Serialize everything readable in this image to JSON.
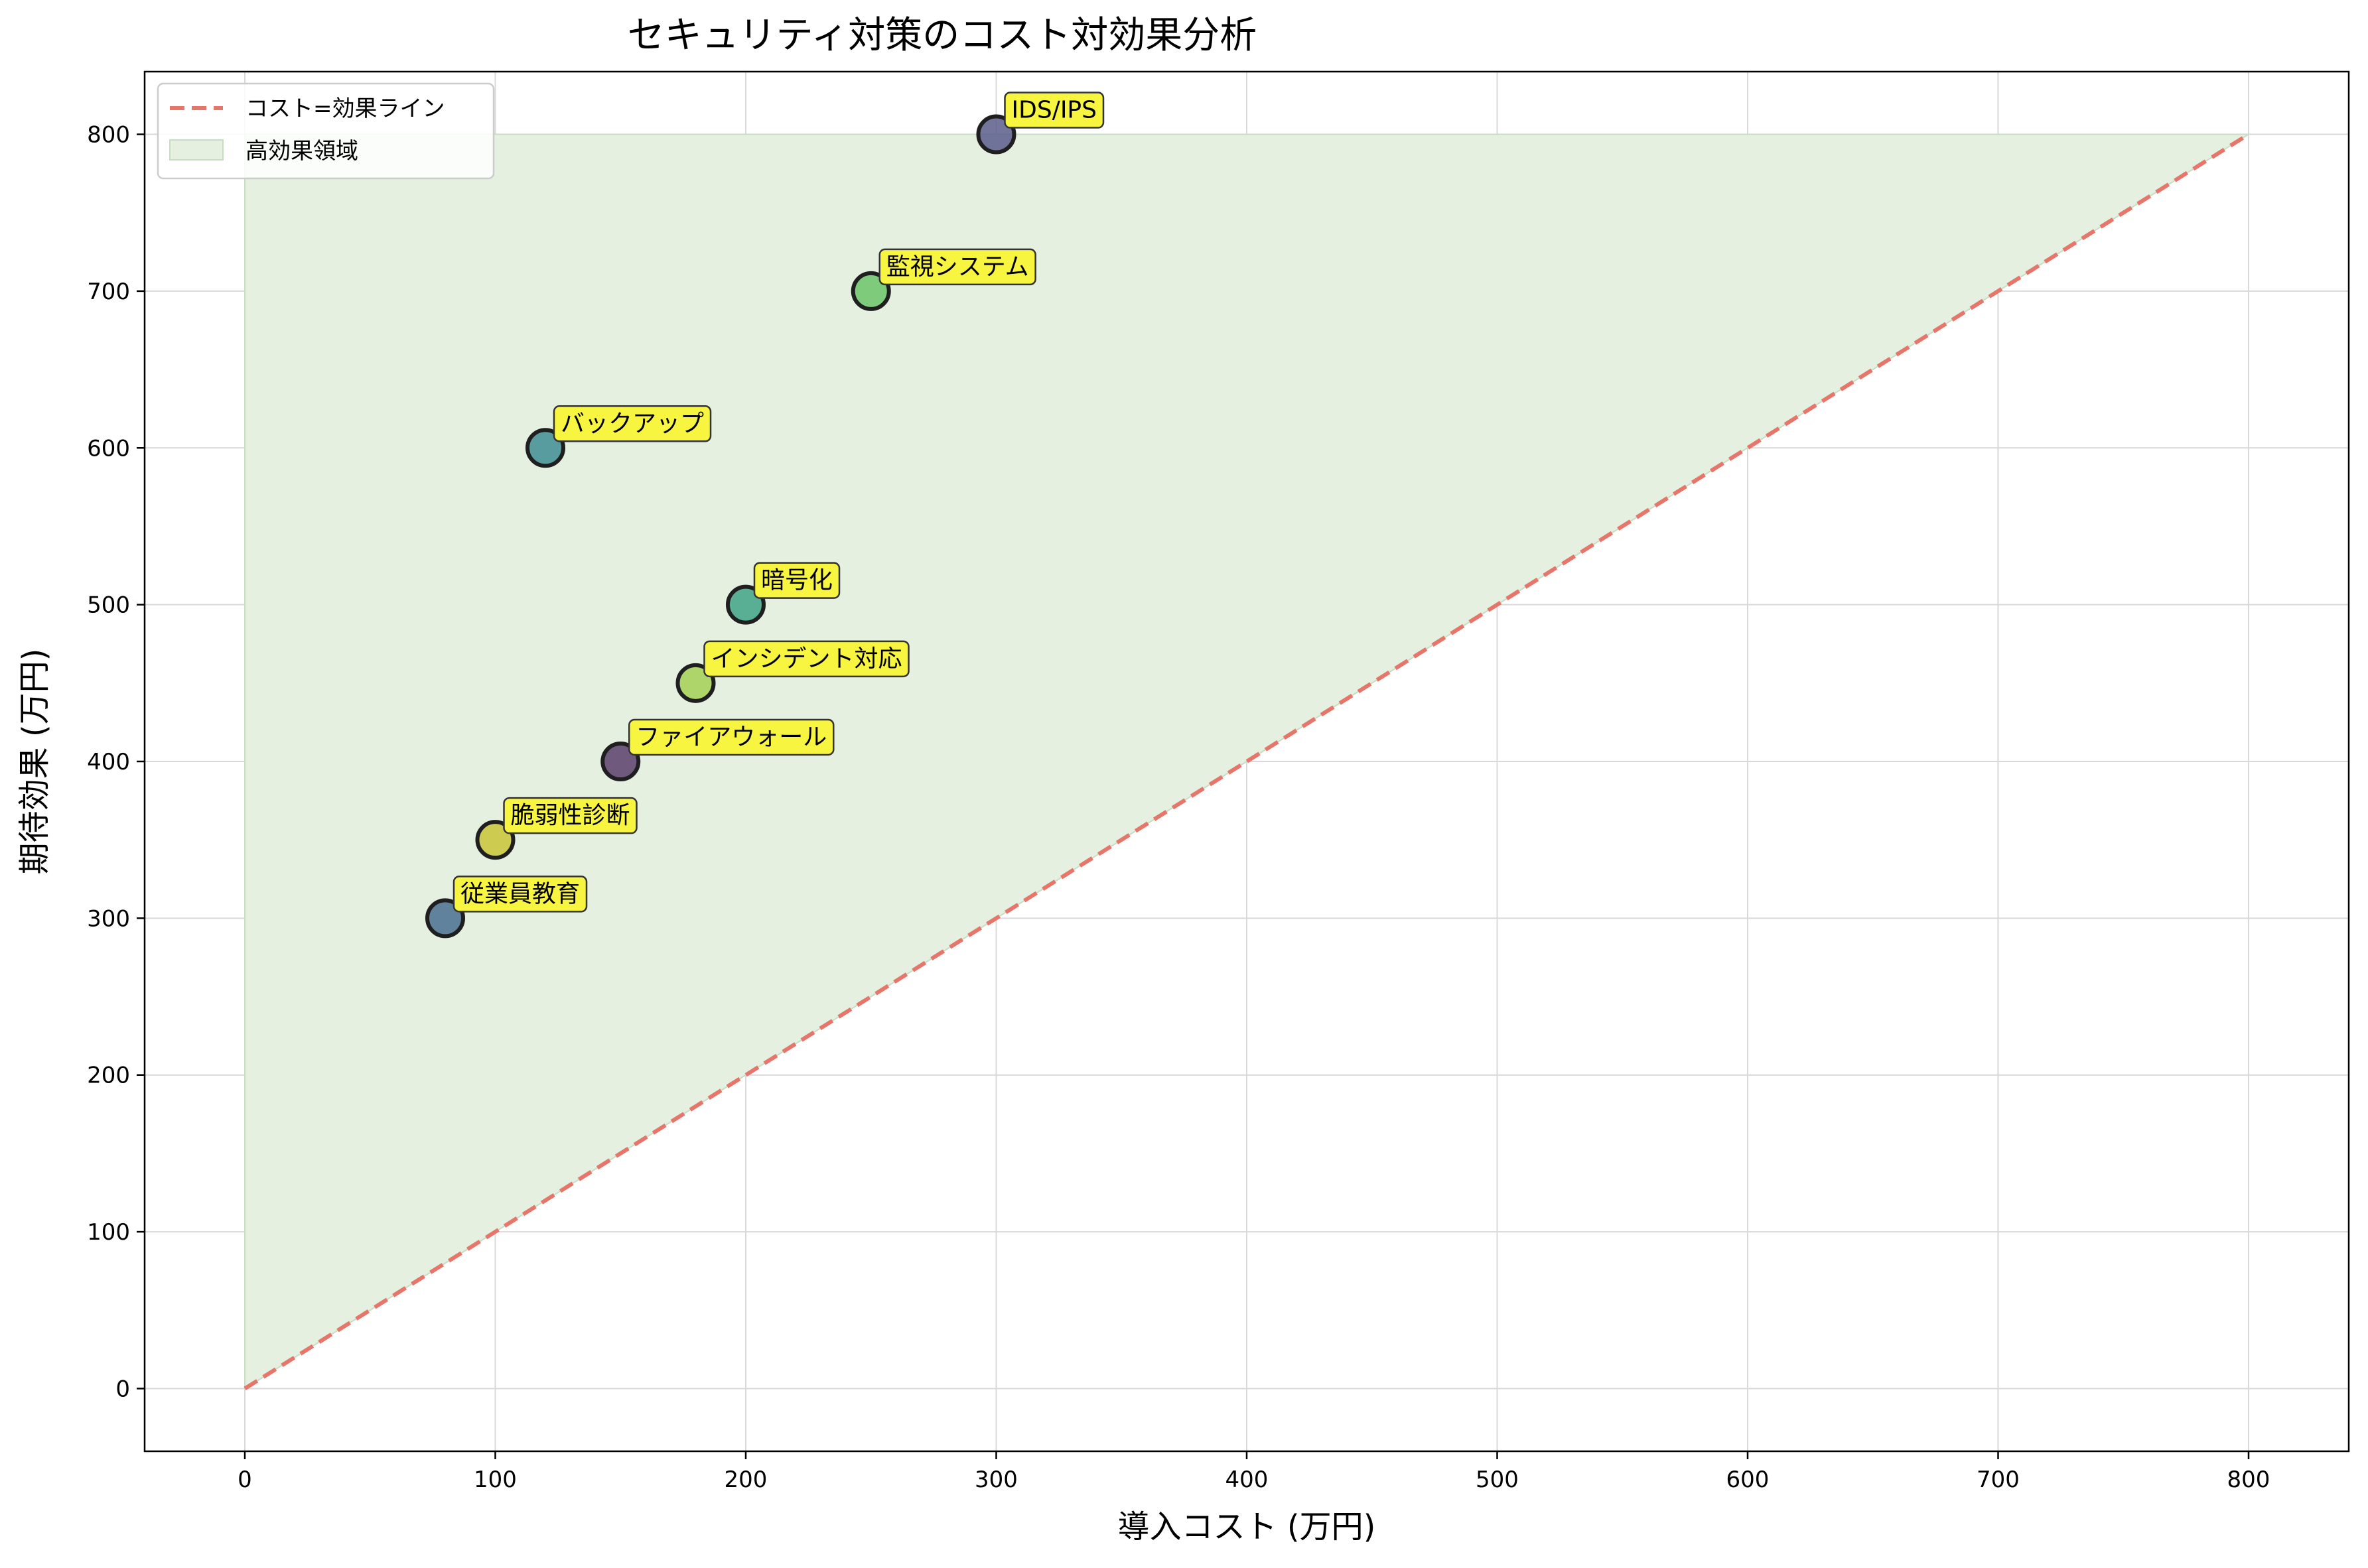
{
  "chart_data": {
    "type": "scatter",
    "title": "セキュリティ対策のコスト対効果分析",
    "xlabel": "導入コスト (万円)",
    "ylabel": "期待効果 (万円)",
    "xlim": [
      -40,
      840
    ],
    "ylim": [
      -40,
      840
    ],
    "xticks": [
      "0",
      "100",
      "200",
      "300",
      "400",
      "500",
      "600",
      "700",
      "800"
    ],
    "yticks": [
      "0",
      "100",
      "200",
      "300",
      "400",
      "500",
      "600",
      "700",
      "800"
    ],
    "grid": true,
    "legend_position": "top-left",
    "legend": [
      {
        "label": "コスト=効果ライン",
        "style": "dashed-line",
        "color": "#e8756a"
      },
      {
        "label": "高効果領域",
        "style": "filled-area",
        "color": "#e5f0e1"
      }
    ],
    "reference_line": {
      "name": "コスト=効果ライン",
      "x": [
        0,
        800
      ],
      "y": [
        0,
        800
      ],
      "color": "#e8756a"
    },
    "fill_region": {
      "name": "高効果領域",
      "x": [
        0,
        800
      ],
      "y_lower": [
        0,
        800
      ],
      "y_upper": [
        800,
        800
      ],
      "color": "#e5f0e1"
    },
    "points": [
      {
        "label": "ファイアウォール",
        "x": 150,
        "y": 400,
        "color": "#5b3e6b"
      },
      {
        "label": "IDS/IPS",
        "x": 300,
        "y": 800,
        "color": "#5a5d8c"
      },
      {
        "label": "暗号化",
        "x": 200,
        "y": 500,
        "color": "#3fa386"
      },
      {
        "label": "バックアップ",
        "x": 120,
        "y": 600,
        "color": "#3f8d93"
      },
      {
        "label": "従業員教育",
        "x": 80,
        "y": 300,
        "color": "#4a6f90"
      },
      {
        "label": "脆弱性診断",
        "x": 100,
        "y": 350,
        "color": "#c9c637"
      },
      {
        "label": "監視システム",
        "x": 250,
        "y": 700,
        "color": "#6cc46a"
      },
      {
        "label": "インシデント対応",
        "x": 180,
        "y": 450,
        "color": "#a4d053"
      }
    ],
    "annotation_box_color": "#f8f540"
  }
}
